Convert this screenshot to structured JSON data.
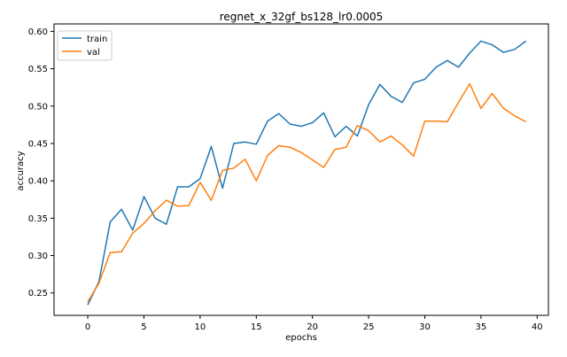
{
  "chart_data": {
    "type": "line",
    "title": "regnet_x_32gf_bs128_lr0.0005",
    "xlabel": "epochs",
    "ylabel": "accuracy",
    "xlim": [
      -3,
      41
    ],
    "ylim": [
      0.22,
      0.61
    ],
    "xticks": [
      0,
      5,
      10,
      15,
      20,
      25,
      30,
      35,
      40
    ],
    "yticks": [
      0.25,
      0.3,
      0.35,
      0.4,
      0.45,
      0.5,
      0.55,
      0.6
    ],
    "grid": false,
    "legend_position": "upper-left",
    "x": [
      0,
      1,
      2,
      3,
      4,
      5,
      6,
      7,
      8,
      9,
      10,
      11,
      12,
      13,
      14,
      15,
      16,
      17,
      18,
      19,
      20,
      21,
      22,
      23,
      24,
      25,
      26,
      27,
      28,
      29,
      30,
      31,
      32,
      33,
      34,
      35,
      36,
      37,
      38,
      39
    ],
    "series": [
      {
        "name": "train",
        "color": "#1f77b4",
        "values": [
          0.234,
          0.265,
          0.345,
          0.362,
          0.334,
          0.379,
          0.35,
          0.342,
          0.392,
          0.392,
          0.403,
          0.446,
          0.39,
          0.45,
          0.452,
          0.449,
          0.48,
          0.49,
          0.476,
          0.473,
          0.478,
          0.491,
          0.459,
          0.473,
          0.46,
          0.502,
          0.529,
          0.513,
          0.505,
          0.531,
          0.536,
          0.552,
          0.561,
          0.552,
          0.571,
          0.587,
          0.582,
          0.572,
          0.576,
          0.587
        ]
      },
      {
        "name": "val",
        "color": "#ff7f0e",
        "values": [
          0.238,
          0.263,
          0.304,
          0.305,
          0.33,
          0.343,
          0.36,
          0.374,
          0.366,
          0.367,
          0.398,
          0.374,
          0.414,
          0.417,
          0.429,
          0.4,
          0.434,
          0.447,
          0.445,
          0.438,
          0.428,
          0.418,
          0.442,
          0.445,
          0.474,
          0.467,
          0.452,
          0.46,
          0.448,
          0.433,
          0.48,
          0.48,
          0.479,
          0.505,
          0.53,
          0.497,
          0.517,
          0.497,
          0.487,
          0.479
        ]
      }
    ]
  }
}
